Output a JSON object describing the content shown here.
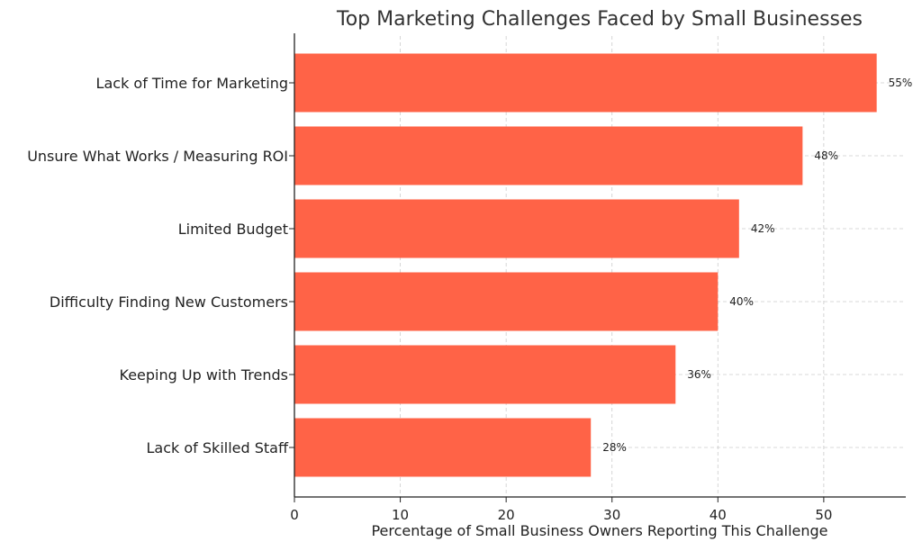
{
  "chart_data": {
    "type": "bar",
    "orientation": "horizontal",
    "title": "Top Marketing Challenges Faced by Small Businesses",
    "xlabel": "Percentage of Small Business Owners Reporting This Challenge",
    "ylabel": "",
    "categories": [
      "Lack of Time for Marketing",
      "Unsure What Works / Measuring ROI",
      "Limited Budget",
      "Difficulty Finding New Customers",
      "Keeping Up with Trends",
      "Lack of Skilled Staff"
    ],
    "values": [
      55,
      48,
      42,
      40,
      36,
      28
    ],
    "data_labels": [
      "55%",
      "48%",
      "42%",
      "40%",
      "36%",
      "28%"
    ],
    "xlim": [
      0,
      57.75
    ],
    "xticks": [
      0,
      10,
      20,
      30,
      40,
      50
    ],
    "xtick_labels": [
      "0",
      "10",
      "20",
      "30",
      "40",
      "50"
    ],
    "grid": true,
    "bar_color": "#ff6347",
    "axis_color": "#222222",
    "grid_color": "#cccccc",
    "text_color": "#222222",
    "title_color": "#333333"
  }
}
